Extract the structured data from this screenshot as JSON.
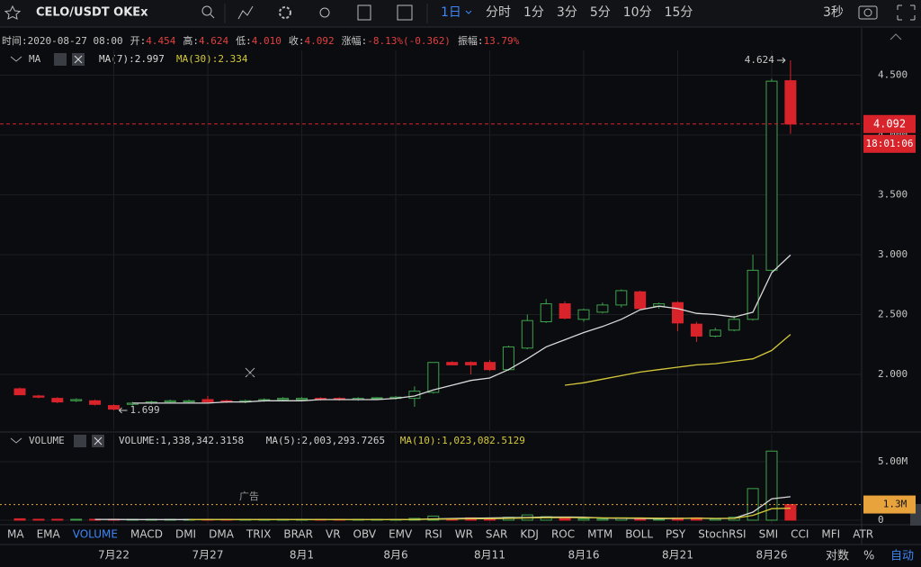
{
  "toolbar": {
    "symbol": "CELO/USDT OKEx",
    "interval": "1日",
    "intervals": [
      "分时",
      "1分",
      "3分",
      "5分",
      "10分",
      "15分"
    ],
    "refresh": "3秒"
  },
  "info": [
    {
      "label": "时间:",
      "value": "2020-08-27 08:00"
    },
    {
      "label": "开:",
      "value": "4.454"
    },
    {
      "label": "高:",
      "value": "4.624"
    },
    {
      "label": "低:",
      "value": "4.010"
    },
    {
      "label": "收:",
      "value": "4.092"
    },
    {
      "label": "涨幅:",
      "value": "-8.13%(-0.362)"
    },
    {
      "label": "振幅:",
      "value": "13.79%"
    }
  ],
  "chart_data": [
    {
      "type": "candlestick",
      "legend_title": "MA",
      "countdown": "18:01:06",
      "categories": [
        null,
        null,
        null,
        null,
        null,
        "7月22",
        null,
        null,
        null,
        null,
        "7月27",
        null,
        null,
        null,
        null,
        "8月1",
        null,
        null,
        null,
        null,
        "8月6",
        null,
        null,
        null,
        null,
        "8月11",
        null,
        null,
        null,
        null,
        "8月16",
        null,
        null,
        null,
        null,
        "8月21",
        null,
        null,
        null,
        null,
        "8月26",
        null
      ],
      "open": [
        1.88,
        1.82,
        1.8,
        1.78,
        1.78,
        1.74,
        1.75,
        1.76,
        1.77,
        1.77,
        1.79,
        1.78,
        1.77,
        1.78,
        1.79,
        1.79,
        1.8,
        1.8,
        1.79,
        1.8,
        1.8,
        1.8,
        1.85,
        2.1,
        2.1,
        2.1,
        2.04,
        2.22,
        2.44,
        2.59,
        2.46,
        2.52,
        2.58,
        2.69,
        2.57,
        2.6,
        2.42,
        2.32,
        2.37,
        2.46,
        2.87,
        4.454
      ],
      "high": [
        1.89,
        1.83,
        1.81,
        1.8,
        1.79,
        1.75,
        1.77,
        1.78,
        1.79,
        1.79,
        1.82,
        1.79,
        1.79,
        1.8,
        1.81,
        1.81,
        1.81,
        1.81,
        1.81,
        1.81,
        1.82,
        1.9,
        2.1,
        2.11,
        2.11,
        2.12,
        2.24,
        2.5,
        2.63,
        2.61,
        2.55,
        2.6,
        2.71,
        2.7,
        2.6,
        2.61,
        2.44,
        2.39,
        2.49,
        3.0,
        4.47,
        4.624
      ],
      "low": [
        1.83,
        1.8,
        1.76,
        1.77,
        1.74,
        1.699,
        1.74,
        1.75,
        1.76,
        1.76,
        1.76,
        1.76,
        1.76,
        1.77,
        1.78,
        1.78,
        1.78,
        1.78,
        1.78,
        1.79,
        1.79,
        1.73,
        1.84,
        2.08,
        2.0,
        2.03,
        2.03,
        2.21,
        2.43,
        2.46,
        2.44,
        2.51,
        2.56,
        2.54,
        2.55,
        2.36,
        2.27,
        2.31,
        2.36,
        2.45,
        2.86,
        4.01
      ],
      "close": [
        1.83,
        1.81,
        1.77,
        1.79,
        1.75,
        1.71,
        1.76,
        1.77,
        1.78,
        1.78,
        1.77,
        1.77,
        1.78,
        1.79,
        1.8,
        1.8,
        1.79,
        1.79,
        1.8,
        1.805,
        1.81,
        1.86,
        2.1,
        2.08,
        2.08,
        2.04,
        2.23,
        2.45,
        2.59,
        2.47,
        2.54,
        2.58,
        2.7,
        2.55,
        2.59,
        2.43,
        2.32,
        2.37,
        2.46,
        2.87,
        4.45,
        4.092
      ],
      "series": [
        {
          "name": "MA(7):2.997",
          "color": "#d9d9d9",
          "values": [
            null,
            null,
            null,
            null,
            null,
            null,
            1.76,
            1.76,
            1.76,
            1.76,
            1.76,
            1.77,
            1.77,
            1.78,
            1.78,
            1.78,
            1.79,
            1.79,
            1.79,
            1.79,
            1.8,
            1.82,
            1.87,
            1.91,
            1.95,
            1.97,
            2.04,
            2.13,
            2.23,
            2.29,
            2.35,
            2.4,
            2.46,
            2.54,
            2.57,
            2.55,
            2.51,
            2.5,
            2.48,
            2.52,
            2.85,
            2.997
          ]
        },
        {
          "name": "MA(30):2.334",
          "color": "#d4c83a",
          "values": [
            null,
            null,
            null,
            null,
            null,
            null,
            null,
            null,
            null,
            null,
            null,
            null,
            null,
            null,
            null,
            null,
            null,
            null,
            null,
            null,
            null,
            null,
            null,
            null,
            null,
            null,
            null,
            null,
            null,
            1.91,
            1.93,
            1.96,
            1.99,
            2.02,
            2.04,
            2.06,
            2.08,
            2.09,
            2.11,
            2.13,
            2.2,
            2.334
          ]
        }
      ],
      "up_color": "#3fa34d",
      "down_color": "#d9232b",
      "ylim": [
        1.534,
        4.707
      ],
      "yticks": [
        {
          "value": 2,
          "label": "2.000"
        },
        {
          "value": 2.5,
          "label": "2.500"
        },
        {
          "value": 3,
          "label": "3.000"
        },
        {
          "value": 3.5,
          "label": "3.500"
        },
        {
          "value": 4,
          "label": "4.000"
        },
        {
          "value": 4.5,
          "label": "4.500"
        }
      ],
      "grid": true
    },
    {
      "type": "bar",
      "title": "VOLUME",
      "current_label": {
        "value": 1.338342,
        "label": "1.3M"
      },
      "series": [
        {
          "name": "VOLUME:1,338,342.3158",
          "values": [
            0.12,
            0.05,
            0.06,
            0.04,
            0.05,
            0.08,
            0.05,
            0.04,
            0.04,
            0.05,
            0.06,
            0.05,
            0.04,
            0.04,
            0.05,
            0.05,
            0.04,
            0.04,
            0.04,
            0.05,
            0.05,
            0.15,
            0.35,
            0.12,
            0.2,
            0.15,
            0.25,
            0.45,
            0.3,
            0.15,
            0.12,
            0.1,
            0.2,
            0.15,
            0.08,
            0.18,
            0.2,
            0.1,
            0.25,
            2.7,
            5.9,
            1.338342
          ]
        },
        {
          "name": "MA(5):2,003,293.7265",
          "color": "#d9d9d9",
          "values": [
            null,
            null,
            null,
            null,
            0.07,
            0.06,
            0.05,
            0.05,
            0.05,
            0.05,
            0.05,
            0.05,
            0.05,
            0.05,
            0.05,
            0.05,
            0.05,
            0.04,
            0.04,
            0.04,
            0.04,
            0.06,
            0.11,
            0.14,
            0.17,
            0.19,
            0.21,
            0.23,
            0.27,
            0.27,
            0.25,
            0.18,
            0.17,
            0.15,
            0.13,
            0.14,
            0.16,
            0.14,
            0.16,
            0.69,
            1.83,
            2.003
          ]
        },
        {
          "name": "MA(10):1,023,082.5129",
          "color": "#d4c83a",
          "values": [
            null,
            null,
            null,
            null,
            null,
            null,
            null,
            null,
            null,
            0.05,
            0.05,
            0.05,
            0.05,
            0.05,
            0.05,
            0.05,
            0.05,
            0.05,
            0.05,
            0.05,
            0.05,
            0.06,
            0.09,
            0.1,
            0.12,
            0.13,
            0.15,
            0.19,
            0.21,
            0.22,
            0.21,
            0.2,
            0.19,
            0.19,
            0.17,
            0.16,
            0.17,
            0.15,
            0.15,
            0.41,
            0.98,
            1.023
          ]
        }
      ],
      "ylim": [
        -0.31,
        7.38
      ],
      "yticks": [
        0,
        {
          "value": 5,
          "label": "5.00M"
        }
      ],
      "grid": true
    }
  ],
  "ad_label": "广告",
  "indicator_tabs": [
    "MA",
    "EMA",
    "VOLUME",
    "MACD",
    "DMI",
    "DMA",
    "TRIX",
    "BRAR",
    "VR",
    "OBV",
    "EMV",
    "RSI",
    "WR",
    "SAR",
    "KDJ",
    "ROC",
    "MTM",
    "BOLL",
    "PSY",
    "StochRSI",
    "SMI",
    "CCI",
    "MFI",
    "ATR"
  ],
  "active_tab": 2,
  "scale_controls": [
    "对数",
    "%",
    "自动"
  ]
}
